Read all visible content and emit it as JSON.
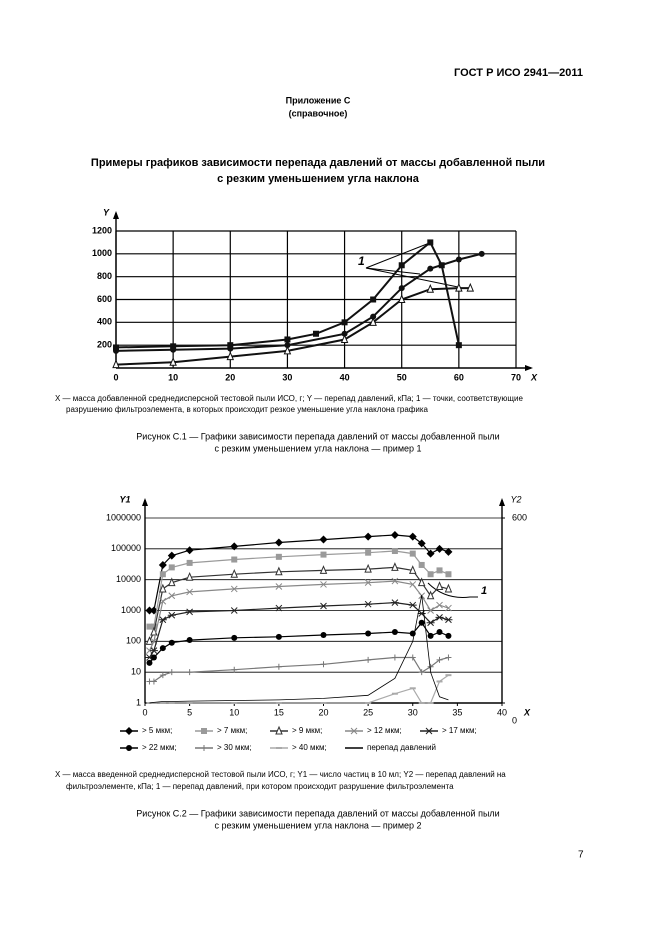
{
  "header": "ГОСТ Р ИСО 2941—2011",
  "appendix": {
    "title": "Приложение С",
    "note": "(справочное)"
  },
  "heading": [
    "Примеры графиков зависимости перепада давлений от массы добавленной пыли",
    "с резким уменьшением угла наклона"
  ],
  "chart_data": [
    {
      "type": "line",
      "x_label": "X",
      "y_label": "Y",
      "xlim": [
        0,
        70
      ],
      "ylim": [
        0,
        1200
      ],
      "xticks": [
        0,
        10,
        20,
        30,
        40,
        50,
        60,
        70
      ],
      "yticks": [
        200,
        400,
        600,
        800,
        1000,
        1200
      ],
      "grid": "both",
      "annotation": "1",
      "series": [
        {
          "color": "#111111",
          "marker": "square",
          "x": [
            0,
            10,
            20,
            30,
            35,
            40,
            45,
            50,
            55,
            57,
            60
          ],
          "values": [
            180,
            190,
            200,
            250,
            300,
            400,
            600,
            900,
            1100,
            900,
            200
          ]
        },
        {
          "color": "#111111",
          "marker": "circle",
          "x": [
            0,
            10,
            20,
            30,
            40,
            45,
            50,
            55,
            60,
            64
          ],
          "values": [
            150,
            160,
            170,
            200,
            300,
            450,
            700,
            870,
            950,
            1000
          ]
        },
        {
          "color": "#111111",
          "marker": "triangle",
          "x": [
            0,
            10,
            20,
            30,
            40,
            45,
            50,
            55,
            60,
            62
          ],
          "values": [
            30,
            50,
            100,
            150,
            250,
            400,
            600,
            690,
            700,
            700
          ]
        }
      ]
    },
    {
      "type": "line",
      "log_y": true,
      "x_label": "X",
      "y_label": "Y1",
      "y2_label": "Y2",
      "x": [
        0.5,
        1,
        2,
        3,
        5,
        10,
        15,
        20,
        25,
        28,
        30,
        31,
        32,
        33,
        34
      ],
      "xlim": [
        0,
        40
      ],
      "xticks": [
        0,
        5,
        10,
        15,
        20,
        25,
        30,
        35,
        40
      ],
      "ylim": [
        1,
        1000000
      ],
      "yticks": [
        1,
        10,
        100,
        1000,
        10000,
        100000,
        1000000
      ],
      "y2lim": [
        0,
        600
      ],
      "y2ticks": [
        0,
        600
      ],
      "grid": "y",
      "annotation": "1",
      "series": [
        {
          "name": "> 5 мкм;",
          "color": "#000000",
          "marker": "diamond",
          "values": [
            1000,
            1000,
            30000,
            60000,
            90000,
            120000,
            160000,
            200000,
            250000,
            280000,
            250000,
            150000,
            70000,
            100000,
            80000
          ]
        },
        {
          "name": "> 7 мкм;",
          "color": "#9a9a9a",
          "marker": "square",
          "values": [
            300,
            300,
            15000,
            25000,
            35000,
            45000,
            55000,
            65000,
            75000,
            85000,
            70000,
            30000,
            15000,
            20000,
            15000
          ]
        },
        {
          "name": "> 9 мкм;",
          "color": "#333333",
          "marker": "triangle",
          "values": [
            100,
            200,
            5000,
            8000,
            12000,
            15000,
            18000,
            20000,
            22000,
            25000,
            20000,
            8000,
            3000,
            6000,
            5000
          ]
        },
        {
          "name": "> 12 мкм;",
          "color": "#888888",
          "marker": "x",
          "values": [
            50,
            100,
            2000,
            3000,
            4000,
            5000,
            6000,
            7000,
            8000,
            9000,
            7000,
            3000,
            1000,
            1500,
            1200
          ]
        },
        {
          "name": "> 17 мкм;",
          "color": "#222222",
          "marker": "star",
          "values": [
            30,
            50,
            500,
            700,
            900,
            1000,
            1200,
            1400,
            1600,
            1800,
            1500,
            800,
            400,
            600,
            500
          ]
        },
        {
          "name": "> 22 мкм;",
          "color": "#000000",
          "marker": "circle",
          "values": [
            20,
            30,
            60,
            90,
            110,
            130,
            140,
            160,
            180,
            200,
            180,
            400,
            150,
            200,
            150
          ]
        },
        {
          "name": "> 30 мкм;",
          "color": "#777777",
          "marker": "plus",
          "values": [
            5,
            5,
            8,
            10,
            10,
            12,
            15,
            18,
            25,
            30,
            30,
            10,
            15,
            25,
            30
          ]
        },
        {
          "name": "> 40 мкм;",
          "color": "#aaaaaa",
          "marker": "dash",
          "values": [
            1,
            1,
            1,
            1,
            1,
            1,
            1,
            1,
            1,
            2,
            3,
            1,
            1,
            5,
            8
          ]
        },
        {
          "name": "перепад давлений",
          "color": "#000000",
          "marker": "none",
          "axis": "y2",
          "values": [
            0,
            2,
            5,
            5,
            6,
            8,
            10,
            15,
            25,
            80,
            200,
            350,
            100,
            20,
            10
          ]
        }
      ]
    }
  ],
  "figures": [
    {
      "note": [
        "X — масса добавленной среднедисперсной тестовой пыли ИСО, г; Y — перепад давлений, кПа; 1 — точки, соответствующие",
        "разрушению фильтроэлемента, в которых происходит резкое уменьшение угла наклона графика"
      ],
      "caption": [
        "Рисунок С.1 — Графики зависимости перепада давлений от массы добавленной пыли",
        "с резким уменьшением угла наклона — пример 1"
      ]
    },
    {
      "note": [
        "X — масса введенной среднедисперсной тестовой пыли ИСО, г; Y1 — число частиц в 10 мл; Y2 — перепад давлений на",
        "фильтроэлементе, кПа; 1 — перепад давлений, при котором происходит разрушение фильтроэлемента"
      ],
      "caption": [
        "Рисунок С.2 — Графики зависимости перепада давлений от массы добавленной пыли",
        "с резким уменьшением угла наклона — пример 2"
      ]
    }
  ],
  "page_number": "7"
}
